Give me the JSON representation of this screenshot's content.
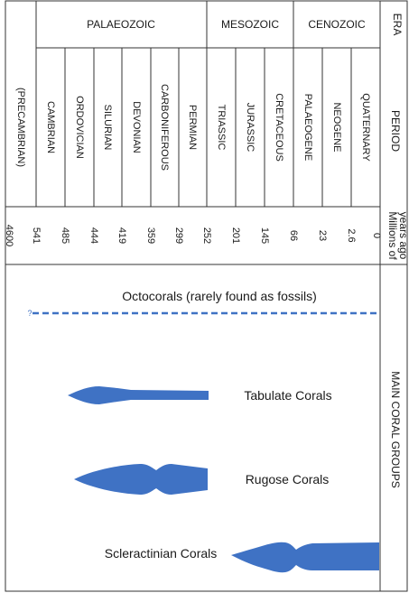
{
  "eras": [
    {
      "label": "PALAEOZOIC"
    },
    {
      "label": "MESOZOIC"
    },
    {
      "label": "CENOZOIC"
    }
  ],
  "era_header": "ERA",
  "period_header": "PERIOD",
  "mya_header": [
    "Millions of",
    "years ago"
  ],
  "main_header": "MAIN CORAL GROUPS",
  "periods": [
    {
      "label": "(PRECAMBRIAN)"
    },
    {
      "label": "CAMBRIAN"
    },
    {
      "label": "ORDOVICIAN"
    },
    {
      "label": "SILURIAN"
    },
    {
      "label": "DEVONIAN"
    },
    {
      "label": "CARBONIFEROUS"
    },
    {
      "label": "PERMIAN"
    },
    {
      "label": "TRIASSIC"
    },
    {
      "label": "JURASSIC"
    },
    {
      "label": "CRETACEOUS"
    },
    {
      "label": "PALAEOGENE"
    },
    {
      "label": "NEOGENE"
    },
    {
      "label": "QUATERNARY"
    }
  ],
  "ages": [
    "4600",
    "541",
    "485",
    "444",
    "419",
    "359",
    "299",
    "252",
    "201",
    "145",
    "66",
    "23",
    "2.6",
    "0"
  ],
  "groups": [
    {
      "label": "Octocorals (rarely found as fossils)",
      "style": "dashed",
      "uncertain_marker": "?"
    },
    {
      "label": "Tabulate Corals",
      "style": "range"
    },
    {
      "label": "Rugose Corals",
      "style": "range"
    },
    {
      "label": "Scleractinian Corals",
      "style": "range"
    }
  ],
  "colors": {
    "range": "#3f72c4",
    "line": "#222222"
  }
}
